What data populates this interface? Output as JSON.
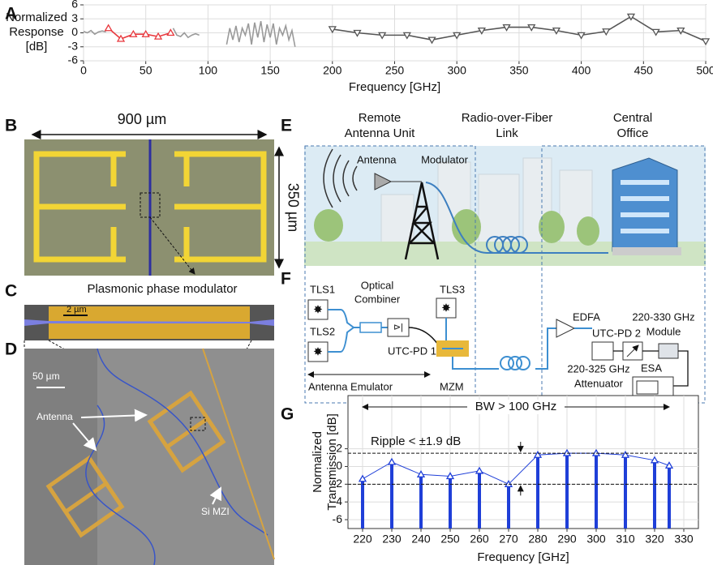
{
  "panels": [
    "A",
    "B",
    "C",
    "D",
    "E",
    "F",
    "G"
  ],
  "chart_data": [
    {
      "type": "line",
      "xlabel": "Frequency [GHz]",
      "ylabel": [
        "Normalized",
        "Response",
        "[dB]"
      ],
      "xlim": [
        0,
        500
      ],
      "xticks": [
        0,
        50,
        100,
        150,
        200,
        250,
        300,
        350,
        400,
        450,
        500
      ],
      "ylim": [
        -6,
        6
      ],
      "yticks": [
        -6,
        -3,
        0,
        3,
        6
      ],
      "grid": true,
      "series": [
        {
          "color": "#9a9a9a",
          "x": [
            0,
            3,
            6,
            9,
            12,
            15,
            18
          ],
          "values": [
            0.3,
            0,
            0.5,
            -0.3,
            0.2,
            0.4,
            0.2
          ]
        },
        {
          "color": "#e8383d",
          "marker": "triangle-up",
          "x": [
            20,
            30,
            40,
            50,
            60,
            70
          ],
          "values": [
            1.0,
            -1.3,
            -0.3,
            -0.3,
            -0.8,
            0
          ]
        },
        {
          "color": "#9a9a9a",
          "x": [
            72,
            75,
            78,
            81,
            84,
            87,
            90,
            93
          ],
          "values": [
            1,
            -0.5,
            -0.8,
            0,
            -1,
            -0.5,
            -0.2,
            -0.5
          ]
        },
        {
          "color": "#9a9a9a",
          "x": [
            115,
            117.5,
            120,
            122.5,
            125,
            127.5,
            130,
            132.5,
            135,
            137.5,
            140,
            142.5,
            145,
            147.5,
            150,
            152.5,
            155,
            157.5,
            160,
            162.5,
            165,
            167.5,
            170
          ],
          "values": [
            -2.5,
            1,
            -1.5,
            1.5,
            -2,
            1,
            -0.5,
            2,
            -2.5,
            2.2,
            -1,
            2.5,
            -2,
            1.8,
            -1,
            2,
            -2.5,
            1,
            -0.5,
            1.5,
            -1.5,
            0.5,
            -3
          ]
        },
        {
          "color": "#555555",
          "marker": "triangle-down",
          "x": [
            200,
            220,
            240,
            260,
            280,
            300,
            320,
            340,
            360,
            380,
            400,
            420,
            440,
            460,
            480,
            500
          ],
          "values": [
            0.8,
            0,
            -0.5,
            -0.5,
            -1.5,
            -0.5,
            0.5,
            1.2,
            1.2,
            0.5,
            -0.5,
            0.3,
            3.5,
            0.2,
            0.5,
            -1.8
          ]
        }
      ]
    },
    {
      "type": "stem",
      "xlabel": "Frequency [GHz]",
      "ylabel": [
        "Normalized",
        "Transmission [dB]"
      ],
      "xlim": [
        215,
        335
      ],
      "xticks": [
        220,
        230,
        240,
        250,
        260,
        270,
        280,
        290,
        300,
        310,
        320,
        330
      ],
      "ylim": [
        -7,
        8
      ],
      "yticks": [
        -6,
        -4,
        -2,
        0,
        2
      ],
      "grid": true,
      "series": [
        {
          "color": "#1f3fd8",
          "marker": "triangle-up",
          "x": [
            220,
            230,
            240,
            250,
            260,
            270,
            280,
            290,
            300,
            310,
            320,
            325
          ],
          "values": [
            -1.4,
            0.5,
            -0.9,
            -1.1,
            -0.5,
            -2.0,
            1.3,
            1.5,
            1.5,
            1.3,
            0.7,
            0.1
          ]
        }
      ],
      "annotations": [
        {
          "text": "BW > 100 GHz",
          "x": [
            220,
            325
          ]
        },
        {
          "text": "Ripple < ±1.9 dB",
          "y": [
            1.5,
            -2.0
          ]
        }
      ]
    }
  ],
  "panel_b": {
    "width": "900 µm",
    "height": "350 µm",
    "caption": "Plasmonic phase modulator"
  },
  "panel_c": {
    "scale": "2 µm"
  },
  "panel_d": {
    "scale": "50 µm",
    "antenna": "Antenna",
    "mzi": "Si MZI"
  },
  "panel_e": {
    "headers": [
      [
        "Remote",
        "Antenna Unit"
      ],
      [
        "Radio-over-Fiber",
        "Link"
      ],
      [
        "Central",
        "Office"
      ]
    ],
    "antenna": "Antenna",
    "modulator": "Modulator"
  },
  "panel_f": {
    "tls1": "TLS1",
    "tls2": "TLS2",
    "tls3": "TLS3",
    "combiner": [
      "Optical",
      "Combiner"
    ],
    "pd1": "UTC-PD 1",
    "emulator": "Antenna Emulator",
    "mzm": "MZM",
    "edfa": "EDFA",
    "pd2": "UTC-PD 2",
    "module": [
      "220-330 GHz",
      "Module"
    ],
    "attenuator": [
      "220-325 GHz",
      "Attenuator"
    ],
    "esa": "ESA"
  }
}
